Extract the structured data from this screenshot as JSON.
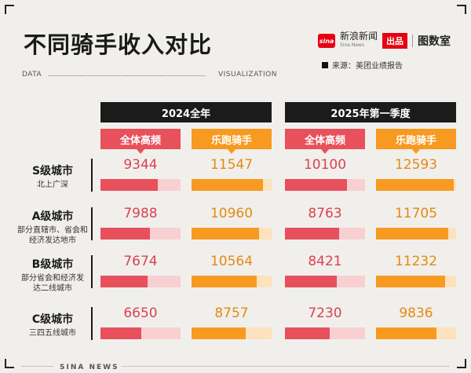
{
  "title": "不同骑手收入对比",
  "brand": {
    "logo_text": "sina",
    "name": "新浪新闻",
    "name_sub": "Sina News",
    "tag": "出品",
    "partner": "图数室"
  },
  "source": "来源：美团业绩报告",
  "dataviz": {
    "left": "DATA",
    "right": "VISUALIZATION"
  },
  "footer": "SINA NEWS",
  "chart_data": {
    "type": "bar",
    "periods": [
      "2024全年",
      "2025年第一季度"
    ],
    "categories_per_period": [
      "全体高频",
      "乐跑骑手"
    ],
    "rows": [
      {
        "name": "S级城市",
        "desc": "北上广深"
      },
      {
        "name": "A级城市",
        "desc": "部分直辖市、省会和经济发达地市"
      },
      {
        "name": "B级城市",
        "desc": "部分省会和经济发达二线城市"
      },
      {
        "name": "C级城市",
        "desc": "三四五线城市"
      }
    ],
    "series": [
      {
        "name": "2024全年 全体高频",
        "values": [
          9344,
          7988,
          7674,
          6650
        ]
      },
      {
        "name": "2024全年 乐跑骑手",
        "values": [
          11547,
          10960,
          10564,
          8757
        ]
      },
      {
        "name": "2025年第一季度 全体高频",
        "values": [
          10100,
          8763,
          8421,
          7230
        ]
      },
      {
        "name": "2025年第一季度 乐跑骑手",
        "values": [
          12593,
          11705,
          11232,
          9836
        ]
      }
    ],
    "ylim": [
      0,
      13000
    ],
    "colors": {
      "high_freq": "#e8505b",
      "high_freq_bg": "#f8d0d2",
      "lepao": "#f79a1f",
      "lepao_bg": "#fde2be"
    }
  }
}
